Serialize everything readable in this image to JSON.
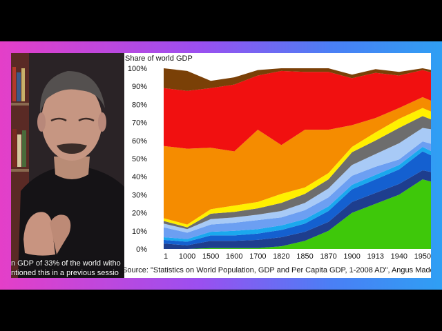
{
  "video": {
    "subtitle_line1": "n GDP of 33% of the world witho",
    "subtitle_line2": "ntioned this in a previous sessio"
  },
  "chart_data": {
    "type": "area",
    "stacked": true,
    "title": "Share of world GDP",
    "ylabel": "",
    "xlabel": "",
    "ylim": [
      0,
      100
    ],
    "y_ticks": [
      "0%",
      "10%",
      "20%",
      "30%",
      "40%",
      "50%",
      "60%",
      "70%",
      "80%",
      "90%",
      "100%"
    ],
    "categories": [
      "1",
      "1000",
      "1500",
      "1600",
      "1700",
      "1820",
      "1850",
      "1870",
      "1900",
      "1913",
      "1940",
      "1950",
      "1"
    ],
    "source": "Source: \"Statistics on World Population, GDP and Per Capita GDP, 1-2008 AD\", Angus Madd",
    "series": [
      {
        "color": "#3ec80a",
        "values": [
          0,
          0,
          0.5,
          0.5,
          0.5,
          1.5,
          4.5,
          10,
          20,
          25,
          30,
          38.5,
          35
        ]
      },
      {
        "color": "#1e3e8e",
        "values": [
          3,
          2,
          4,
          4,
          4.5,
          5,
          5,
          5,
          6,
          6,
          6,
          5,
          6
        ]
      },
      {
        "color": "#1460d0",
        "values": [
          2,
          2,
          3,
          3,
          3.5,
          4,
          4.5,
          6,
          7,
          7.5,
          8,
          10.5,
          7
        ]
      },
      {
        "color": "#1aa8ee",
        "values": [
          1.5,
          1.5,
          2,
          2.5,
          2.5,
          2.5,
          2.5,
          2.5,
          2.5,
          2.5,
          2.5,
          2.5,
          2
        ]
      },
      {
        "color": "#6c9ff2",
        "values": [
          5.5,
          3.5,
          4,
          4.5,
          5,
          4.5,
          5,
          5,
          5,
          4.5,
          3,
          3,
          6
        ]
      },
      {
        "color": "#a8caf6",
        "values": [
          2,
          2,
          3,
          3,
          3,
          3.5,
          4,
          5,
          6,
          7,
          9,
          7.5,
          9
        ]
      },
      {
        "color": "#6d6d6d",
        "values": [
          1.5,
          1,
          3,
          3,
          3.5,
          4.5,
          5,
          5,
          7,
          7.5,
          8.5,
          6.5,
          3.5
        ]
      },
      {
        "color": "#fff000",
        "values": [
          1.5,
          1.5,
          2.5,
          3.5,
          3.5,
          5,
          3.5,
          3.5,
          3,
          4.5,
          5,
          4.5,
          4
        ]
      },
      {
        "color": "#f58c00",
        "values": [
          40,
          42,
          34,
          30,
          40,
          27,
          32,
          24,
          12,
          8,
          6,
          6,
          6
        ]
      },
      {
        "color": "#f11010",
        "values": [
          32,
          32,
          33,
          37,
          30,
          41,
          32,
          32,
          26,
          25,
          18,
          15,
          17
        ]
      },
      {
        "color": "#7a4007",
        "values": [
          11.5,
          11,
          4,
          4,
          3,
          2,
          2,
          2,
          2,
          2,
          2,
          2,
          2
        ]
      }
    ]
  }
}
